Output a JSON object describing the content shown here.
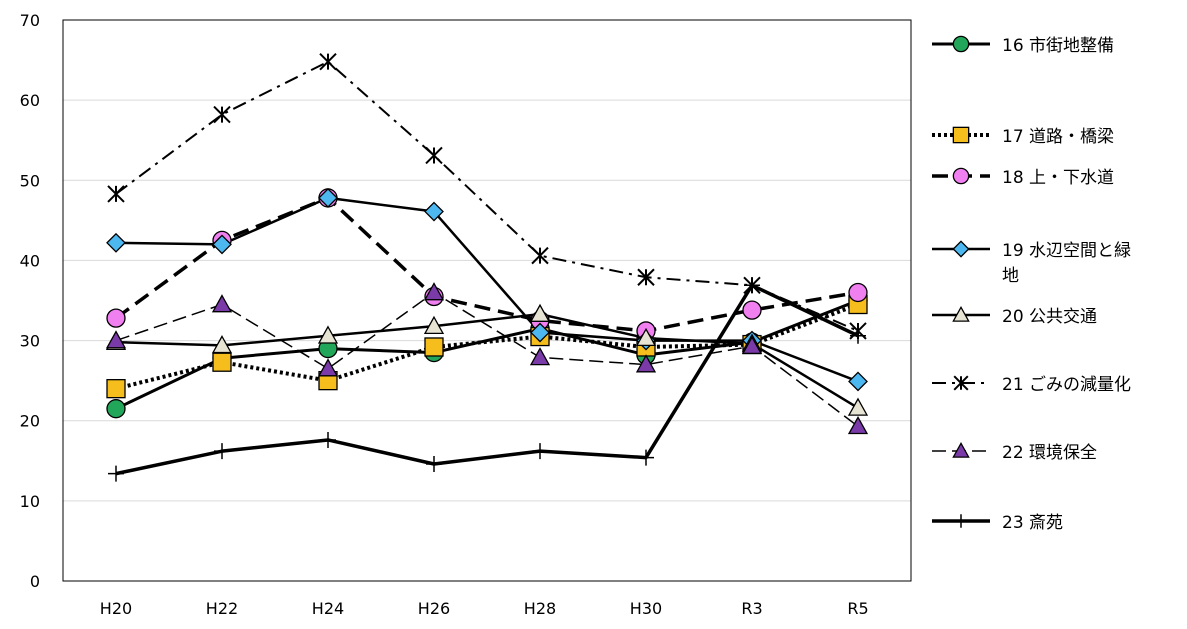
{
  "chart_data": {
    "type": "line",
    "categories": [
      "H20",
      "H22",
      "H24",
      "H26",
      "H28",
      "H30",
      "R3",
      "R5"
    ],
    "ylim": [
      0,
      70
    ],
    "yticks": [
      0,
      10,
      20,
      30,
      40,
      50,
      60,
      70
    ],
    "grid": true,
    "legend_position": "right",
    "series": [
      {
        "name": "16 市街地整備",
        "values": [
          21.5,
          27.8,
          29.0,
          28.5,
          31.5,
          28.2,
          29.8,
          35.0
        ],
        "marker": "circle",
        "fill": "#22a65a",
        "line": "solid",
        "width": 3
      },
      {
        "name": "17 道路・橋梁",
        "values": [
          24.0,
          27.3,
          25.0,
          29.2,
          30.5,
          29.2,
          29.5,
          34.5
        ],
        "marker": "square",
        "fill": "#f5be1d",
        "line": "dotted",
        "width": 4
      },
      {
        "name": "18 上・下水道",
        "values": [
          32.8,
          42.5,
          47.8,
          35.5,
          32.5,
          31.2,
          33.8,
          36.0
        ],
        "marker": "circle",
        "fill": "#f07ff0",
        "line": "longdash",
        "width": 3.5
      },
      {
        "name": "19 水辺空間と緑地",
        "values": [
          42.2,
          42.0,
          47.8,
          46.1,
          31.0,
          30.0,
          30.0,
          24.9
        ],
        "marker": "diamond",
        "fill": "#4db7f0",
        "line": "solid",
        "width": 2.5
      },
      {
        "name": "20 公共交通",
        "values": [
          29.8,
          29.4,
          30.6,
          31.8,
          33.3,
          30.3,
          29.6,
          21.6
        ],
        "marker": "triangle",
        "fill": "#e8e4d3",
        "line": "solid",
        "width": 2.5
      },
      {
        "name": "21 ごみの減量化",
        "values": [
          48.3,
          58.2,
          64.8,
          53.1,
          40.6,
          37.9,
          36.9,
          31.2
        ],
        "marker": "star",
        "fill": "none",
        "line": "dashdot",
        "width": 2
      },
      {
        "name": "22 環境保全",
        "values": [
          30.0,
          34.5,
          26.5,
          36.0,
          27.9,
          27.0,
          29.3,
          19.3
        ],
        "marker": "triangle",
        "fill": "#7a3aa8",
        "line": "dash",
        "width": 1.5
      },
      {
        "name": "23 斎苑",
        "values": [
          13.4,
          16.2,
          17.6,
          14.6,
          16.2,
          15.4,
          36.9,
          30.6
        ],
        "marker": "plus",
        "fill": "none",
        "line": "solid",
        "width": 3.5
      }
    ]
  }
}
